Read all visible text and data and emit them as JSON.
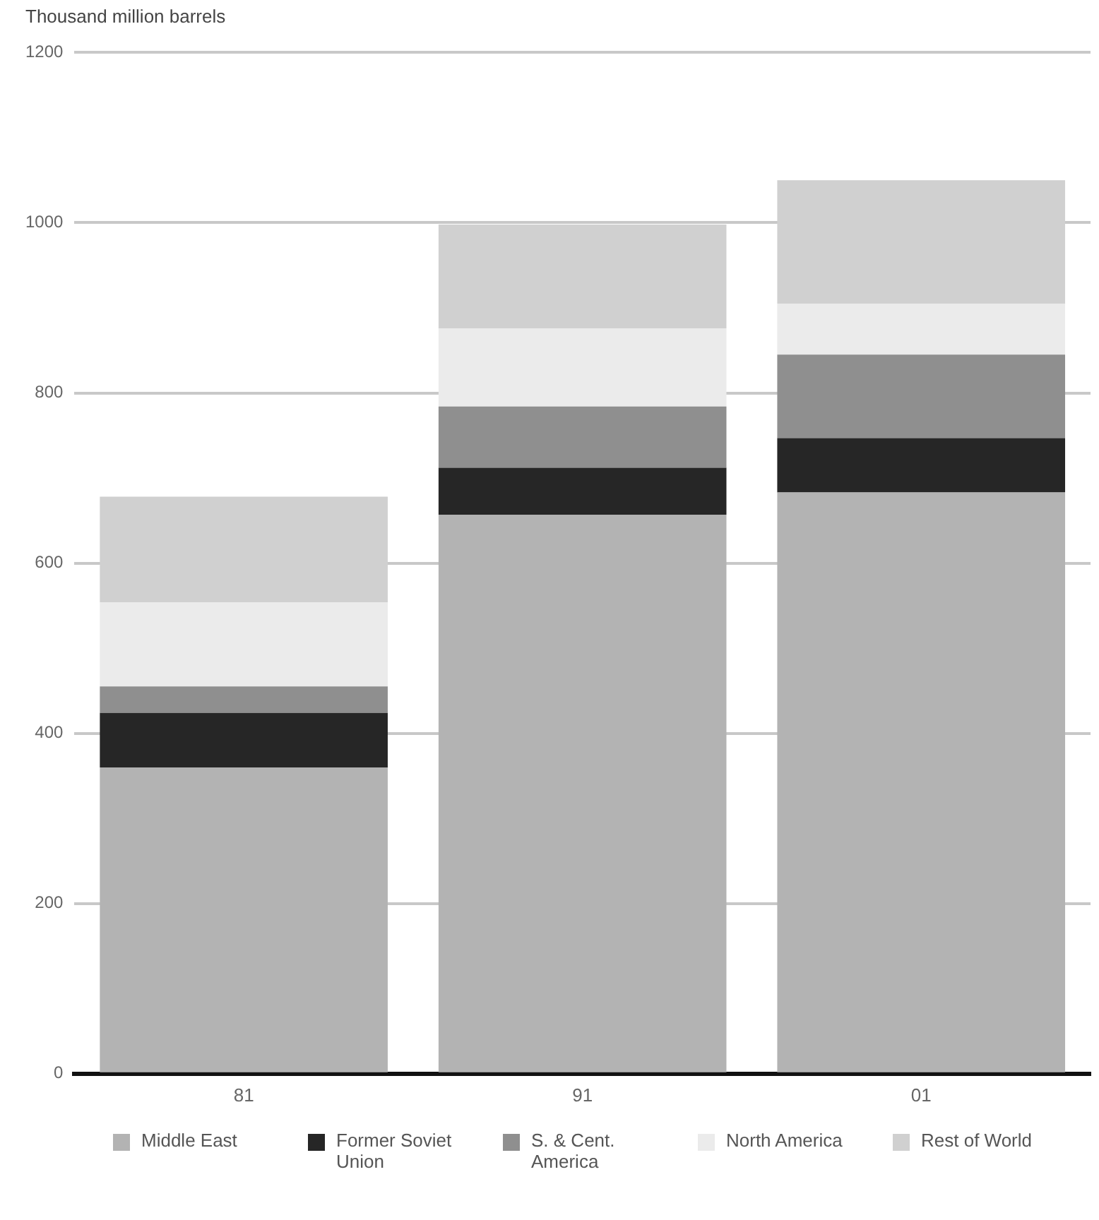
{
  "chart_data": {
    "type": "bar",
    "ylabel": "Thousand million barrels",
    "categories": [
      "81",
      "91",
      "01"
    ],
    "stacked": true,
    "series": [
      {
        "name": "Middle East",
        "color": "#b3b3b3",
        "values": [
          360,
          657,
          683
        ]
      },
      {
        "name": "Former Soviet Union",
        "color": "#262626",
        "values": [
          64,
          55,
          64
        ]
      },
      {
        "name": "S. & Cent. America",
        "color": "#8f8f8f",
        "values": [
          31,
          72,
          98
        ]
      },
      {
        "name": "North America",
        "color": "#ebebeb",
        "values": [
          99,
          92,
          60
        ]
      },
      {
        "name": "Rest of World",
        "color": "#d0d0d0",
        "values": [
          124,
          122,
          145
        ]
      }
    ],
    "ylim": [
      0,
      1200
    ],
    "yticks": [
      0,
      200,
      400,
      600,
      800,
      1000,
      1200
    ],
    "grid": "y",
    "legend": "bottom"
  }
}
